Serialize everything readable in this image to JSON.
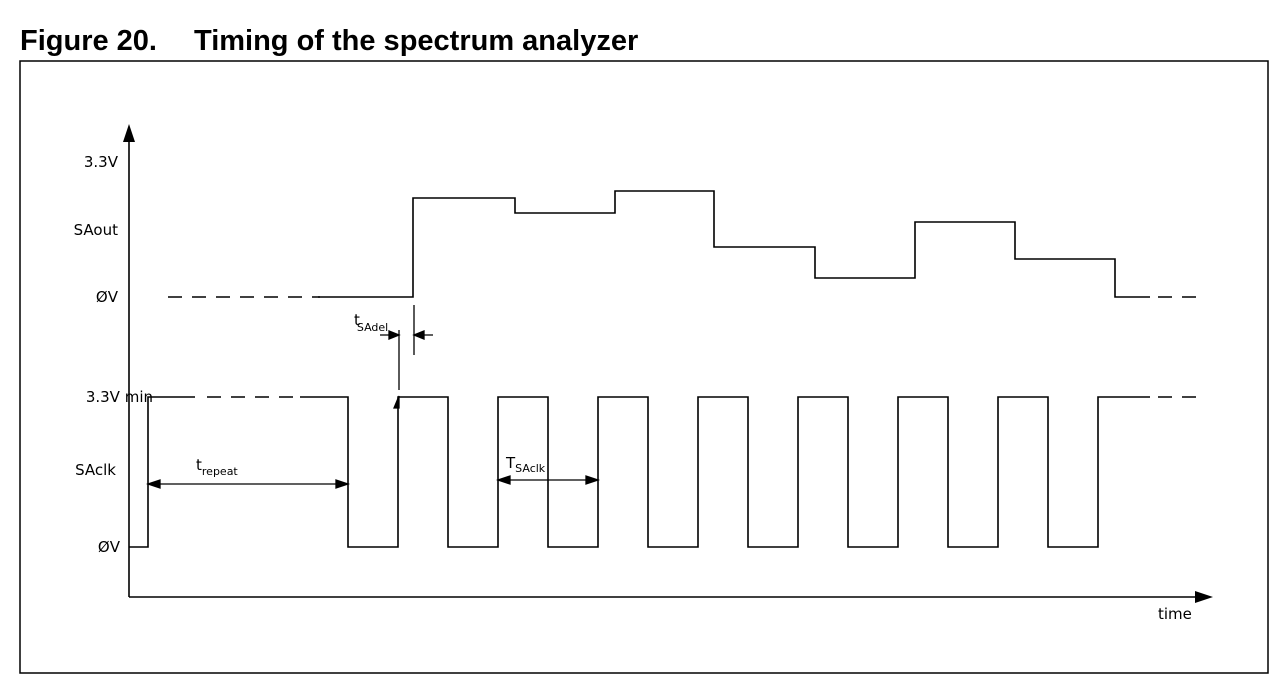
{
  "figure": {
    "number": "Figure 20.",
    "title": "Timing of the spectrum analyzer"
  },
  "labels": {
    "saout_high": "3.3V",
    "saout": "SAout",
    "saout_low": "ØV",
    "sadel_t": "t",
    "sadel_sub": "SAdel",
    "saclk_high": "3.3V min",
    "saclk": "SAclk",
    "saclk_low": "ØV",
    "repeat_t": "t",
    "repeat_sub": "repeat",
    "period_t": "T",
    "period_sub": "SAclk",
    "time": "time"
  }
}
